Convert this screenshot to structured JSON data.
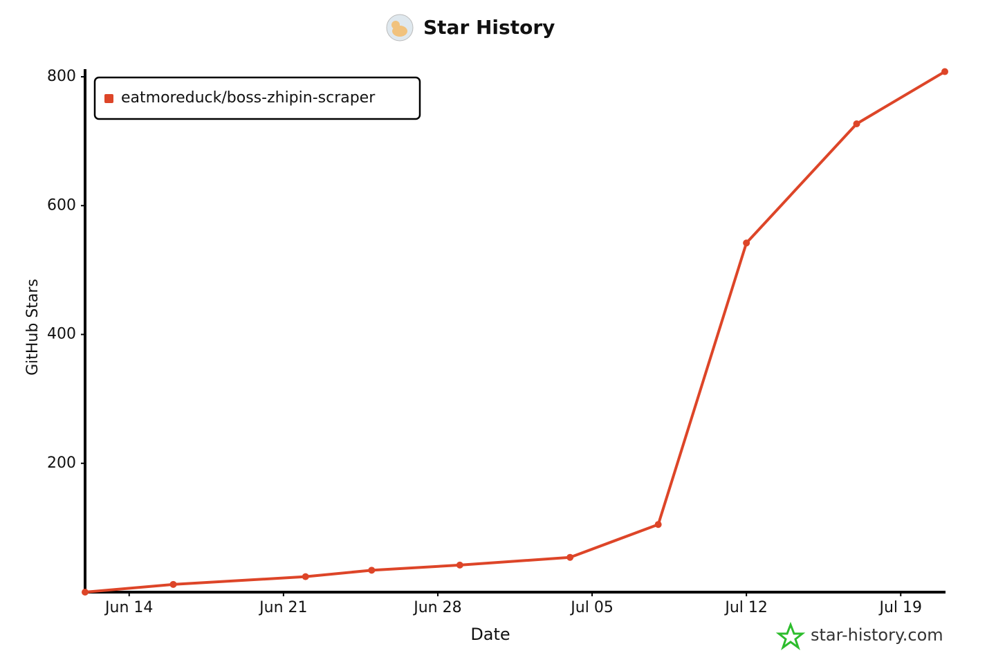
{
  "chart_data": {
    "type": "line",
    "title": "Star History",
    "xlabel": "Date",
    "ylabel": "GitHub Stars",
    "watermark": "star-history.com",
    "x": [
      "Jun 12",
      "Jun 16",
      "Jun 22",
      "Jun 25",
      "Jun 29",
      "Jul 04",
      "Jul 08",
      "Jul 12",
      "Jul 17",
      "Jul 21"
    ],
    "series": [
      {
        "name": "eatmoreduck/boss-zhipin-scraper",
        "color": "#dd4528",
        "values": [
          0,
          12,
          24,
          34,
          42,
          54,
          105,
          542,
          727,
          808
        ]
      }
    ],
    "xlim": [
      "Jun 12",
      "Jul 21"
    ],
    "xticks": [
      "Jun 14",
      "Jun 21",
      "Jun 28",
      "Jul 05",
      "Jul 12",
      "Jul 19"
    ],
    "ylim": [
      0,
      800
    ],
    "yticks": [
      200,
      400,
      600,
      800
    ],
    "legend": "top-left"
  }
}
